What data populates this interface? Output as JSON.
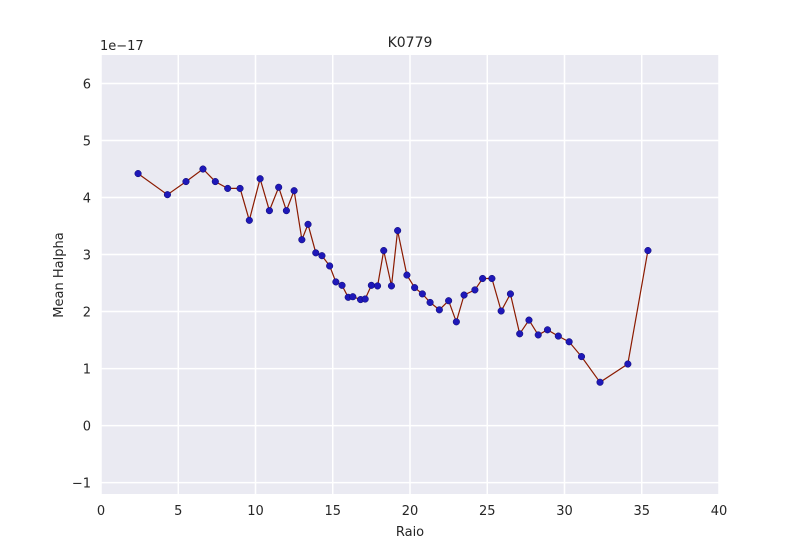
{
  "chart_data": {
    "type": "line",
    "title": "K0779",
    "xlabel": "Raio",
    "ylabel": "Mean Halpha",
    "offset_label": "1e−17",
    "xlim": [
      0,
      40
    ],
    "ylim": [
      -1.2,
      6.5
    ],
    "x_ticks": [
      0,
      5,
      10,
      15,
      20,
      25,
      30,
      35,
      40
    ],
    "y_ticks": [
      -1,
      0,
      1,
      2,
      3,
      4,
      5,
      6
    ],
    "y_tick_labels": [
      "−1",
      "0",
      "1",
      "2",
      "3",
      "4",
      "5",
      "6"
    ],
    "grid": true,
    "line_color": "#8b1a00",
    "marker_color": "#1f18b8",
    "background_color": "#eaeaf2",
    "series": [
      {
        "x": [
          2.4,
          4.3,
          5.5,
          6.6,
          7.4,
          8.2,
          9.0,
          9.6,
          10.3,
          10.9,
          11.5,
          12.0,
          12.5,
          13.0,
          13.4,
          13.9,
          14.3,
          14.8,
          15.2,
          15.6,
          16.0,
          16.3,
          16.8,
          17.1,
          17.5,
          17.9,
          18.3,
          18.8,
          19.2,
          19.8,
          20.3,
          20.8,
          21.3,
          21.9,
          22.5,
          23.0,
          23.5,
          24.2,
          24.7,
          25.3,
          25.9,
          26.5,
          27.1,
          27.7,
          28.3,
          28.9,
          29.6,
          30.3,
          31.1,
          32.3,
          34.1,
          35.4
        ],
        "y": [
          4.42,
          4.05,
          4.28,
          4.5,
          4.28,
          4.16,
          4.16,
          3.6,
          4.33,
          3.77,
          4.18,
          3.77,
          4.12,
          3.26,
          3.53,
          3.03,
          2.98,
          2.8,
          2.52,
          2.46,
          2.25,
          2.26,
          2.21,
          2.22,
          2.46,
          2.45,
          3.07,
          2.45,
          3.42,
          2.64,
          2.42,
          2.31,
          2.16,
          2.03,
          2.19,
          1.82,
          2.29,
          2.38,
          2.58,
          2.58,
          2.01,
          2.31,
          1.61,
          1.85,
          1.59,
          1.68,
          1.57,
          1.47,
          1.21,
          0.76,
          1.08,
          3.07
        ]
      }
    ]
  }
}
